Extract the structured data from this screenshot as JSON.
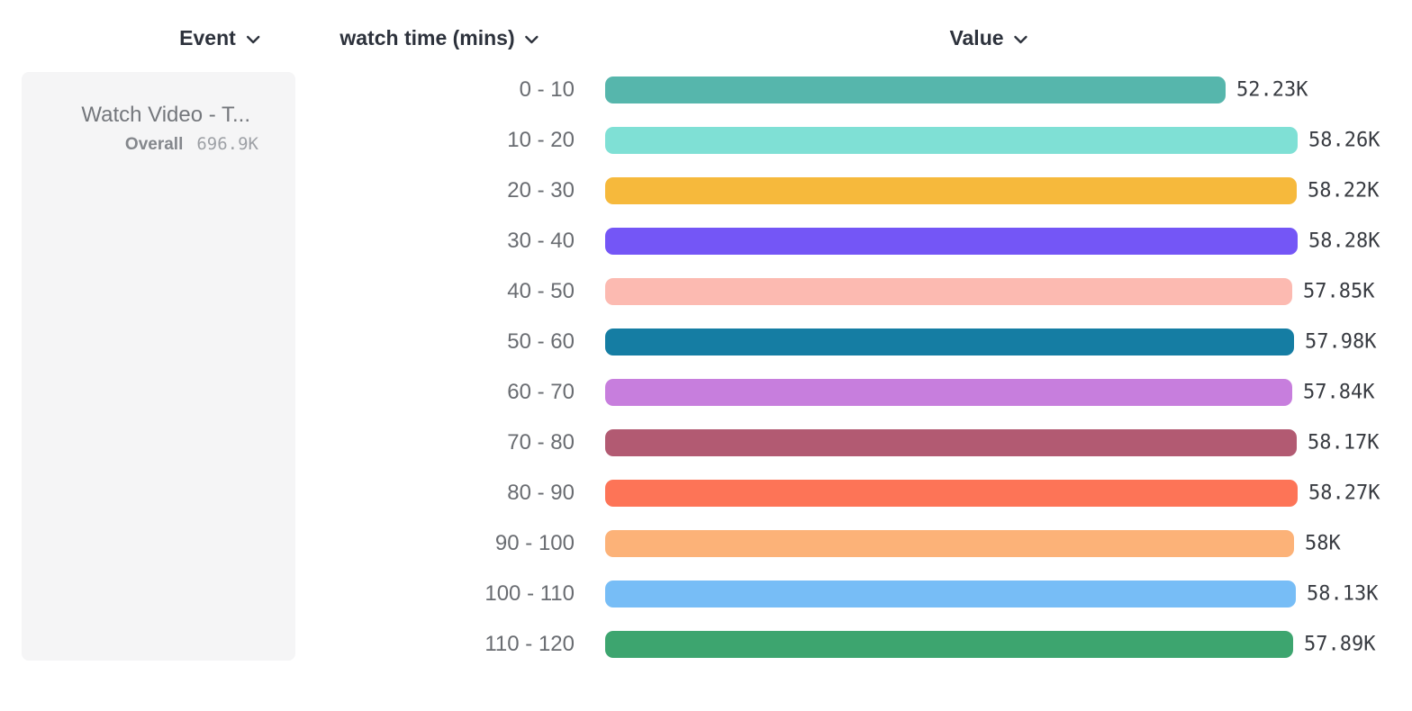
{
  "page": {
    "background": "#ffffff"
  },
  "headers": [
    {
      "id": "event",
      "label": "Event"
    },
    {
      "id": "breakdown",
      "label": "watch time (mins)"
    },
    {
      "id": "value",
      "label": "Value"
    }
  ],
  "icons": {
    "header_dropdown": "chevron-down"
  },
  "event_card": {
    "title": "Watch Video - T...",
    "overall_label": "Overall",
    "overall_value": "696.9K"
  },
  "chart_data": {
    "type": "bar",
    "orientation": "horizontal",
    "title": "",
    "series_name": "watch time (mins)",
    "categories": [
      "0 - 10",
      "10 - 20",
      "20 - 30",
      "30 - 40",
      "40 - 50",
      "50 - 60",
      "60 - 70",
      "70 - 80",
      "80 - 90",
      "90 - 100",
      "100 - 110",
      "110 - 120"
    ],
    "values": [
      52230,
      58260,
      58220,
      58280,
      57850,
      57980,
      57840,
      58170,
      58270,
      58000,
      58130,
      57890
    ],
    "value_labels": [
      "52.23K",
      "58.26K",
      "58.22K",
      "58.28K",
      "57.85K",
      "57.98K",
      "57.84K",
      "58.17K",
      "58.27K",
      "58K",
      "58.13K",
      "57.89K"
    ],
    "colors": [
      "#56B6AC",
      "#7FE0D5",
      "#F6B93C",
      "#7456F6",
      "#FCBAB1",
      "#157DA3",
      "#C77EDD",
      "#B25A72",
      "#FD7457",
      "#FCB278",
      "#77BDF6",
      "#3DA56F"
    ],
    "xlim": [
      0,
      58280
    ],
    "grid": false,
    "legend": false
  }
}
